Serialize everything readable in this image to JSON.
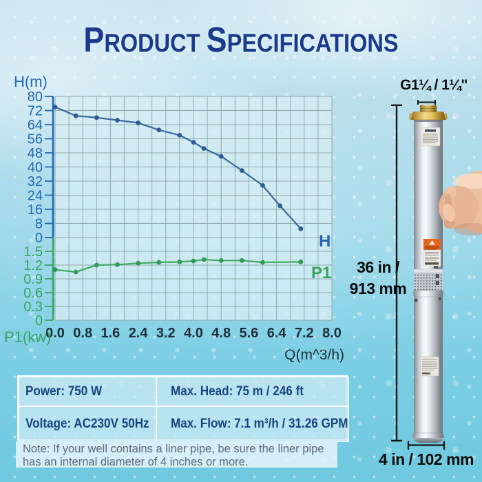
{
  "title": {
    "word1": "Product",
    "word2": "Specifications"
  },
  "chart_data": {
    "type": "line",
    "title": "",
    "grid": true,
    "x_axis": {
      "label": "Q(m^3/h)",
      "ticks": [
        "0.0",
        "0.8",
        "1.6",
        "2.4",
        "3.2",
        "4.0",
        "4.8",
        "5.6",
        "6.4",
        "7.2",
        "8.0"
      ],
      "max": 8,
      "minor_step": 0.4
    },
    "y_axis_left": {
      "label": "H(m)",
      "ticks": [
        "80",
        "72",
        "64",
        "56",
        "48",
        "40",
        "32",
        "24",
        "16",
        "8",
        "0"
      ],
      "max": 80,
      "color": "#2268b4"
    },
    "y_axis_right": {
      "label": "P1(kw)",
      "ticks": [
        "1.5",
        "1.2",
        "0.9",
        "0.6",
        "0.3",
        "0"
      ],
      "max": 1.5,
      "color": "#3aa35f"
    },
    "series": [
      {
        "name": "H",
        "axis": "left",
        "line_color": "#3a67a0",
        "point_color": "#2c5e96",
        "label_color": "#2065b4",
        "x": [
          0,
          0.6,
          1.2,
          1.8,
          2.4,
          3.0,
          3.6,
          4.0,
          4.3,
          4.8,
          5.4,
          6.0,
          6.5,
          7.1
        ],
        "y": [
          74,
          69,
          68,
          66.5,
          65,
          61,
          58,
          54,
          50.5,
          46,
          38,
          29.5,
          18,
          5
        ]
      },
      {
        "name": "P1",
        "axis": "right",
        "line_color": "#41a963",
        "point_color": "#2f9b53",
        "label_color": "#3aa35f",
        "x": [
          0,
          0.6,
          1.2,
          1.8,
          2.4,
          3.0,
          3.6,
          4.0,
          4.3,
          4.8,
          5.4,
          6.0,
          7.1
        ],
        "y": [
          1.1,
          1.05,
          1.2,
          1.21,
          1.24,
          1.26,
          1.27,
          1.29,
          1.32,
          1.3,
          1.3,
          1.26,
          1.27
        ]
      }
    ]
  },
  "pump": {
    "outlet_label": "G1¼ / 1¼\"",
    "length_line1": "36 in /",
    "length_line2": "913 mm",
    "diameter_label": "4 in / 102 mm"
  },
  "specs": {
    "power": "Power: 750 W",
    "voltage": "Voltage: AC230V 50Hz",
    "max_head": "Max. Head: 75 m / 246 ft",
    "max_flow": "Max. Flow: 7.1 m³/h / 31.26 GPM"
  },
  "note": {
    "text": "Note: If your well contains a liner pipe, be sure the liner pipe has an internal diameter of 4 inches or more."
  }
}
